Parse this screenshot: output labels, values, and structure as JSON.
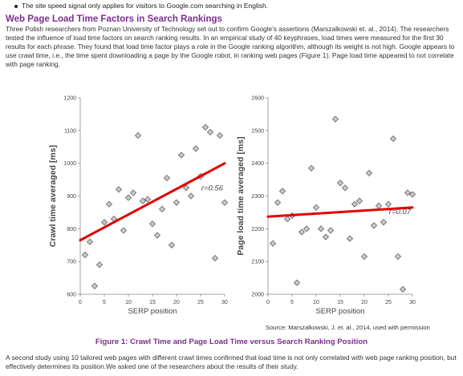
{
  "bullet_text": "The site speed signal only applies for visitors to Google.com searching in English.",
  "heading": "Web Page Load Time Factors in Search Rankings",
  "intro": "Three Polish researchers from Poznan University of Technology set out to confirm Google's assertions (Marszalkowski et. al., 2014). The researchers tested the influence of load time factors on search ranking results. In an empirical study of 40 keyphrases, load times were measured for the first 30 results for each phrase. They found that load time factor plays a role in the Google ranking algorithm, although its weight is not high. Google appears to use crawl time, i.e., the time spent downloading a page by the Google robot, in ranking web pages (Figure 1). Page load time appeared to not correlate with page ranking.",
  "source": "Source: Marszalkowski, J. et. al., 2014, used with permission",
  "caption": "Figure 1: Crawl Time and Page Load Time versus Search Ranking Position",
  "outro": "A second study using 10 tailored web pages with different crawl times confirmed that load time is not only correlated with web page ranking position, but effectively determines its position.We asked one of the researchers about the results of their study.",
  "colors": {
    "heading": "#7b2e8e",
    "trend": "#e00000",
    "marker": "#c8c8c8",
    "marker_edge": "#555555"
  },
  "chart_data": [
    {
      "type": "scatter",
      "xlabel": "SERP position",
      "ylabel": "Crawl time averaged [ms]",
      "xlim": [
        0,
        30
      ],
      "ylim": [
        600,
        1200
      ],
      "xticks": [
        "0",
        "5",
        "10",
        "15",
        "20",
        "25",
        "30"
      ],
      "yticks": [
        "600",
        "700",
        "800",
        "900",
        "1000",
        "1100",
        "1200"
      ],
      "annotation": "r=0.56",
      "trend": [
        [
          0,
          765
        ],
        [
          30,
          1000
        ]
      ],
      "points": [
        [
          1,
          720
        ],
        [
          2,
          760
        ],
        [
          3,
          625
        ],
        [
          4,
          690
        ],
        [
          5,
          820
        ],
        [
          6,
          875
        ],
        [
          7,
          830
        ],
        [
          8,
          920
        ],
        [
          9,
          795
        ],
        [
          10,
          895
        ],
        [
          11,
          910
        ],
        [
          12,
          1085
        ],
        [
          13,
          885
        ],
        [
          14,
          890
        ],
        [
          15,
          815
        ],
        [
          16,
          780
        ],
        [
          17,
          860
        ],
        [
          18,
          955
        ],
        [
          19,
          750
        ],
        [
          20,
          880
        ],
        [
          21,
          1025
        ],
        [
          22,
          925
        ],
        [
          23,
          900
        ],
        [
          24,
          1045
        ],
        [
          25,
          960
        ],
        [
          26,
          1110
        ],
        [
          27,
          1095
        ],
        [
          28,
          710
        ],
        [
          29,
          1085
        ],
        [
          30,
          880
        ]
      ]
    },
    {
      "type": "scatter",
      "xlabel": "SERP position",
      "ylabel": "Page load time averaged [ms]",
      "xlim": [
        0,
        30
      ],
      "ylim": [
        2000,
        2600
      ],
      "xticks": [
        "0",
        "5",
        "10",
        "15",
        "20",
        "25",
        "30"
      ],
      "yticks": [
        "2000",
        "2100",
        "2200",
        "2300",
        "2400",
        "2500",
        "2600"
      ],
      "annotation": "r=0.07",
      "trend": [
        [
          0,
          2237
        ],
        [
          30,
          2265
        ]
      ],
      "points": [
        [
          1,
          2155
        ],
        [
          2,
          2280
        ],
        [
          3,
          2315
        ],
        [
          4,
          2230
        ],
        [
          5,
          2240
        ],
        [
          6,
          2035
        ],
        [
          7,
          2190
        ],
        [
          8,
          2200
        ],
        [
          9,
          2385
        ],
        [
          10,
          2265
        ],
        [
          11,
          2200
        ],
        [
          12,
          2175
        ],
        [
          13,
          2195
        ],
        [
          14,
          2535
        ],
        [
          15,
          2340
        ],
        [
          16,
          2325
        ],
        [
          17,
          2170
        ],
        [
          18,
          2275
        ],
        [
          19,
          2285
        ],
        [
          20,
          2115
        ],
        [
          21,
          2370
        ],
        [
          22,
          2210
        ],
        [
          23,
          2270
        ],
        [
          24,
          2220
        ],
        [
          25,
          2275
        ],
        [
          26,
          2475
        ],
        [
          27,
          2115
        ],
        [
          28,
          2015
        ],
        [
          29,
          2310
        ],
        [
          30,
          2305
        ]
      ]
    }
  ]
}
